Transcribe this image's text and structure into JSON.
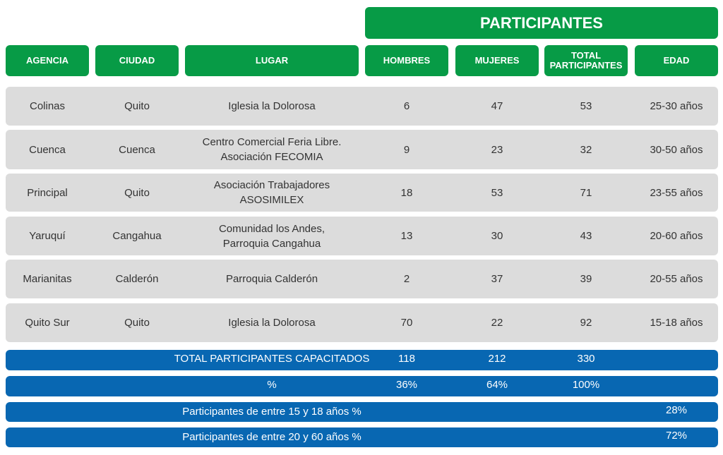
{
  "table": {
    "group_header": "PARTICIPANTES",
    "headers": [
      "AGENCIA",
      "CIUDAD",
      "LUGAR",
      "HOMBRES",
      "MUJERES",
      "TOTAL PARTICIPANTES",
      "EDAD"
    ],
    "rows": [
      [
        "Colinas",
        "Quito",
        [
          "Iglesia la Dolorosa"
        ],
        6,
        47,
        53,
        "25-30 años"
      ],
      [
        "Cuenca",
        "Cuenca",
        [
          "Centro Comercial Feria Libre.",
          "Asociación FECOMIA"
        ],
        9,
        23,
        32,
        "30-50 años"
      ],
      [
        "Principal",
        "Quito",
        [
          "Asociación Trabajadores",
          "ASOSIMILEX"
        ],
        18,
        53,
        71,
        "23-55 años"
      ],
      [
        "Yaruquí",
        "Cangahua",
        [
          "Comunidad los Andes,",
          "Parroquia Cangahua"
        ],
        13,
        30,
        43,
        "20-60 años"
      ],
      [
        "Marianitas",
        "Calderón",
        [
          "Parroquia Calderón"
        ],
        2,
        37,
        39,
        "20-55 años"
      ],
      [
        "Quito Sur",
        "Quito",
        [
          "Iglesia la Dolorosa"
        ],
        70,
        22,
        92,
        "15-18 años"
      ]
    ],
    "summary": [
      {
        "label": "TOTAL PARTICIPANTES CAPACITADOS",
        "values": [
          118,
          212,
          330
        ]
      },
      {
        "label": "%",
        "values": [
          "36%",
          "64%",
          "100%"
        ]
      }
    ],
    "age_groups": [
      {
        "label": "Participantes de entre 15 y 18 años %",
        "value": "28%"
      },
      {
        "label": "Participantes de entre 20 y 60 años %",
        "value": "72%"
      }
    ]
  }
}
